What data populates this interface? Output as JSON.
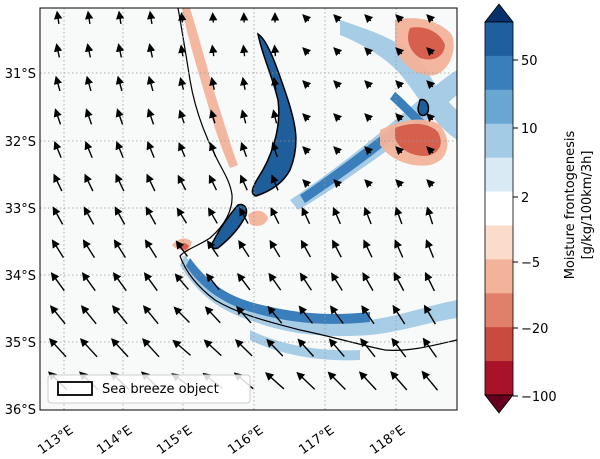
{
  "map": {
    "lon_labels": [
      "113°E",
      "114°E",
      "115°E",
      "116°E",
      "117°E",
      "118°E"
    ],
    "lat_labels": [
      "31°S",
      "32°S",
      "33°S",
      "34°S",
      "35°S",
      "36°S"
    ],
    "legend_label": "Sea breeze object"
  },
  "colorbar": {
    "title": "Moisture frontogenesis",
    "units": "[g/kg/100km/3h]",
    "tick_labels": [
      "50",
      "10",
      "2",
      "−5",
      "−20",
      "−100"
    ],
    "colors": [
      "#08306b",
      "#1f5fa0",
      "#3a7fbc",
      "#6aa6d2",
      "#a3cbe6",
      "#d9eaf4",
      "#ffffff",
      "#fbdccb",
      "#f3b39a",
      "#e0806a",
      "#c94a3f",
      "#a8132a",
      "#67001f"
    ]
  },
  "colors": {
    "ocean_land": "#f7faf9",
    "positive": "#2a6fb2",
    "negative": "#d6604d",
    "sea_breeze_fill": "#1e5e9b"
  }
}
